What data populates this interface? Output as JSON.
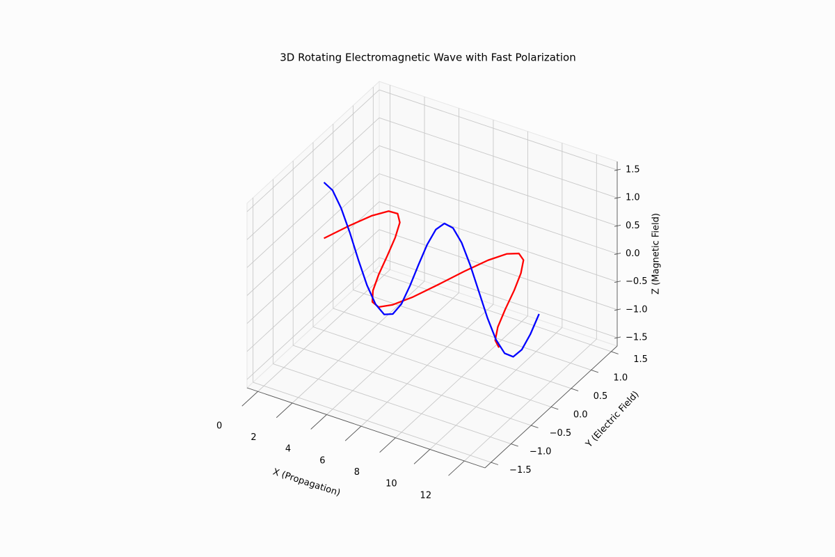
{
  "chart_data": {
    "type": "line3d",
    "title": "3D Rotating Electromagnetic Wave with Fast Polarization",
    "xlabel": "X (Propagation)",
    "ylabel": "Y (Electric Field)",
    "zlabel": "Z (Magnetic Field)",
    "x": [
      0,
      0.5,
      1,
      1.5,
      2,
      2.5,
      3,
      3.5,
      4,
      4.5,
      5,
      5.5,
      6,
      6.5,
      7,
      7.5,
      8,
      8.5,
      9,
      9.5,
      10,
      10.5,
      11,
      11.5,
      12,
      12.5
    ],
    "series": [
      {
        "color": "#ff0000",
        "y": [
          0,
          0.42,
          0.77,
          0.97,
          0.98,
          0.82,
          0.49,
          0.08,
          -0.35,
          -0.71,
          -0.94,
          -1.0,
          -0.86,
          -0.57,
          -0.16,
          0.28,
          0.66,
          0.91,
          1.0,
          0.9,
          0.62,
          0.24,
          -0.2,
          -0.6,
          -0.88,
          -1.0
        ],
        "z": [
          0,
          0,
          0,
          0,
          0,
          0,
          0,
          0,
          0,
          0,
          0,
          0,
          0,
          0,
          0,
          0,
          0,
          0,
          0,
          0,
          0,
          0,
          0,
          0,
          0,
          0
        ]
      },
      {
        "color": "#0000ff",
        "y": [
          0,
          0,
          0,
          0,
          0,
          0,
          0,
          0,
          0,
          0,
          0,
          0,
          0,
          0,
          0,
          0,
          0,
          0,
          0,
          0,
          0,
          0,
          0,
          0,
          0,
          0
        ],
        "z": [
          1,
          0.91,
          0.64,
          0.26,
          -0.18,
          -0.58,
          -0.87,
          -1.0,
          -0.94,
          -0.71,
          -0.33,
          0.1,
          0.51,
          0.83,
          0.99,
          0.96,
          0.75,
          0.4,
          -0.02,
          -0.44,
          -0.78,
          -0.97,
          -0.98,
          -0.8,
          -0.47,
          -0.06
        ]
      }
    ],
    "xlim": [
      -0.63,
      13.2
    ],
    "ylim": [
      -1.65,
      1.65
    ],
    "zlim": [
      -1.65,
      1.65
    ],
    "xticks": [
      0,
      2,
      4,
      6,
      8,
      10,
      12
    ],
    "yticks": [
      {
        "value": -1.5,
        "label": "−1.5"
      },
      {
        "value": -1,
        "label": "−1.0"
      },
      {
        "value": -0.5,
        "label": "−0.5"
      },
      {
        "value": 0,
        "label": "0.0"
      },
      0.5,
      {
        "value": 1,
        "label": "1.0"
      },
      1.5
    ],
    "zticks": [
      {
        "value": -1.5,
        "label": "−1.5"
      },
      {
        "value": -1,
        "label": "−1.0"
      },
      {
        "value": -0.5,
        "label": "−0.5"
      },
      {
        "value": 0,
        "label": "0.0"
      },
      0.5,
      {
        "value": 1,
        "label": "1.0"
      },
      1.5
    ],
    "grid": true
  }
}
